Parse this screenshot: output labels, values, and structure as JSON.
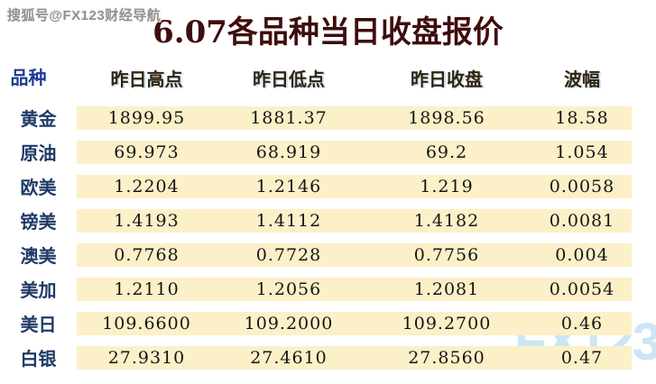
{
  "watermarks": {
    "top_left": "搜狐号@FX123财经导航",
    "bottom_right": "FX123"
  },
  "chart_data": {
    "type": "table",
    "title": "6.07各品种当日收盘报价",
    "columns": [
      "品种",
      "昨日高点",
      "昨日低点",
      "昨日收盘",
      "波幅"
    ],
    "rows": [
      [
        "黄金",
        "1899.95",
        "1881.37",
        "1898.56",
        "18.58"
      ],
      [
        "原油",
        "69.973",
        "68.919",
        "69.2",
        "1.054"
      ],
      [
        "欧美",
        "1.2204",
        "1.2146",
        "1.219",
        "0.0058"
      ],
      [
        "镑美",
        "1.4193",
        "1.4112",
        "1.4182",
        "0.0081"
      ],
      [
        "澳美",
        "0.7768",
        "0.7728",
        "0.7756",
        "0.004"
      ],
      [
        "美加",
        "1.2110",
        "1.2056",
        "1.2081",
        "0.0054"
      ],
      [
        "美日",
        "109.6600",
        "109.2000",
        "109.2700",
        "0.46"
      ],
      [
        "白银",
        "27.9310",
        "27.4610",
        "27.8560",
        "0.47"
      ]
    ]
  },
  "colors": {
    "title": "#3f0d0d",
    "header_text": "#33220e",
    "variety_header": "#1c3a96",
    "row_label": "#1f3a66",
    "value_text": "#151515",
    "row_band": "#fcf0c8",
    "watermark_top": "#909090",
    "watermark_bottom": "#cde5f4",
    "background": "#ffffff"
  }
}
